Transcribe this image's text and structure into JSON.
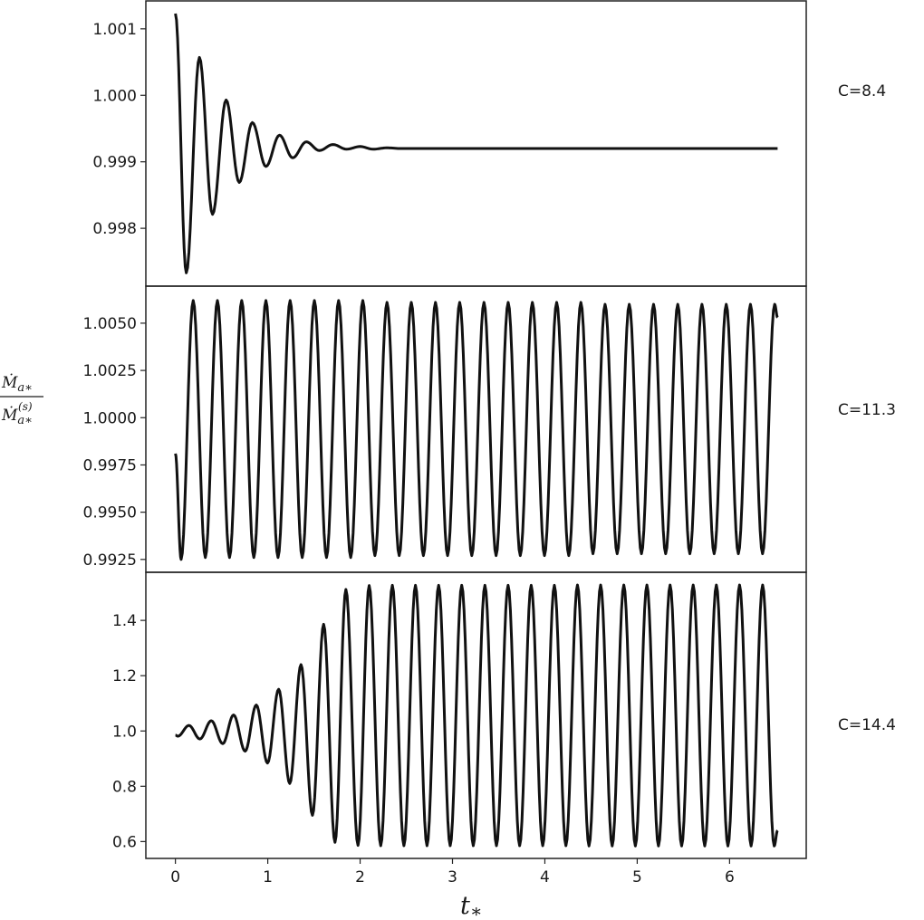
{
  "chart_data": {
    "type": "line",
    "xlabel": "t*",
    "ylabel": {
      "numerator": "Ṁa*",
      "denominator": "Ṁa*(s)"
    },
    "xlim": [
      -0.32,
      6.83
    ],
    "xticks": [
      0,
      1,
      2,
      3,
      4,
      5,
      6
    ],
    "grid": false,
    "line_color": "#111111",
    "panels": [
      {
        "label": "C=8.4",
        "ylim": [
          0.99713,
          1.00142
        ],
        "yticks": [
          "1.001",
          "1.000",
          "0.999",
          "0.998"
        ],
        "extrema": [
          [
            0,
            1.00123
          ],
          [
            0.118,
            0.99733
          ],
          [
            0.26,
            1.00057
          ],
          [
            0.402,
            0.99821
          ],
          [
            0.549,
            0.99993
          ],
          [
            0.691,
            0.99869
          ],
          [
            0.833,
            0.99959
          ],
          [
            0.98,
            0.99893
          ],
          [
            1.127,
            0.9994
          ],
          [
            1.27,
            0.99906
          ],
          [
            1.417,
            0.9993
          ],
          [
            1.559,
            0.99917
          ],
          [
            1.706,
            0.99926
          ],
          [
            1.853,
            0.99919
          ],
          [
            2.0,
            0.99923
          ],
          [
            2.14,
            0.99919
          ],
          [
            2.29,
            0.99921
          ],
          [
            2.44,
            0.9992
          ],
          [
            6.52,
            0.9992
          ]
        ]
      },
      {
        "label": "C=11.3",
        "ylim": [
          0.99182,
          1.00696
        ],
        "yticks": [
          "1.0050",
          "1.0025",
          "1.0000",
          "0.9975",
          "0.9950",
          "0.9925"
        ],
        "extrema": [
          [
            0,
            0.9981
          ],
          [
            0.062,
            0.9925
          ],
          [
            0.193,
            1.0062
          ],
          [
            0.324,
            0.9926
          ],
          [
            0.455,
            1.0062
          ],
          [
            0.586,
            0.9926
          ],
          [
            0.718,
            1.0062
          ],
          [
            0.849,
            0.9926
          ],
          [
            0.98,
            1.0062
          ],
          [
            1.111,
            0.9926
          ],
          [
            1.242,
            1.0062
          ],
          [
            1.373,
            0.9926
          ],
          [
            1.505,
            1.0062
          ],
          [
            1.636,
            0.9926
          ],
          [
            1.767,
            1.0062
          ],
          [
            1.898,
            0.9926
          ],
          [
            2.029,
            1.0062
          ],
          [
            2.16,
            0.9927
          ],
          [
            2.291,
            1.0061
          ],
          [
            2.423,
            0.9927
          ],
          [
            2.554,
            1.0061
          ],
          [
            2.685,
            0.9927
          ],
          [
            2.816,
            1.0061
          ],
          [
            2.947,
            0.9927
          ],
          [
            3.078,
            1.0061
          ],
          [
            3.209,
            0.9927
          ],
          [
            3.341,
            1.0061
          ],
          [
            3.472,
            0.9927
          ],
          [
            3.603,
            1.0061
          ],
          [
            3.734,
            0.9927
          ],
          [
            3.865,
            1.0061
          ],
          [
            3.996,
            0.9927
          ],
          [
            4.128,
            1.0061
          ],
          [
            4.259,
            0.9927
          ],
          [
            4.39,
            1.0061
          ],
          [
            4.521,
            0.9928
          ],
          [
            4.652,
            1.006
          ],
          [
            4.783,
            0.9928
          ],
          [
            4.914,
            1.006
          ],
          [
            5.046,
            0.9928
          ],
          [
            5.177,
            1.006
          ],
          [
            5.308,
            0.9928
          ],
          [
            5.439,
            1.006
          ],
          [
            5.57,
            0.9928
          ],
          [
            5.701,
            1.006
          ],
          [
            5.833,
            0.9928
          ],
          [
            5.964,
            1.006
          ],
          [
            6.095,
            0.9928
          ],
          [
            6.226,
            1.006
          ],
          [
            6.357,
            0.9928
          ],
          [
            6.488,
            1.006
          ],
          [
            6.52,
            1.0053
          ]
        ]
      },
      {
        "label": "C=14.4",
        "ylim": [
          0.539,
          1.574
        ],
        "yticks": [
          "1.4",
          "1.2",
          "1.0",
          "0.8",
          "0.6"
        ],
        "extrema": [
          [
            0,
            0.985
          ],
          [
            0.026,
            0.981
          ],
          [
            0.147,
            1.02
          ],
          [
            0.265,
            0.971
          ],
          [
            0.389,
            1.037
          ],
          [
            0.513,
            0.954
          ],
          [
            0.63,
            1.058
          ],
          [
            0.755,
            0.927
          ],
          [
            0.876,
            1.094
          ],
          [
            0.997,
            0.884
          ],
          [
            1.118,
            1.151
          ],
          [
            1.238,
            0.81
          ],
          [
            1.36,
            1.24
          ],
          [
            1.484,
            0.695
          ],
          [
            1.605,
            1.386
          ],
          [
            1.728,
            0.597
          ],
          [
            1.846,
            1.512
          ],
          [
            1.977,
            0.586
          ],
          [
            2.098,
            1.526
          ],
          [
            2.223,
            0.585
          ],
          [
            2.349,
            1.527
          ],
          [
            2.474,
            0.585
          ],
          [
            2.599,
            1.527
          ],
          [
            2.724,
            0.585
          ],
          [
            2.85,
            1.527
          ],
          [
            2.975,
            0.585
          ],
          [
            3.1,
            1.527
          ],
          [
            3.225,
            0.585
          ],
          [
            3.351,
            1.527
          ],
          [
            3.476,
            0.585
          ],
          [
            3.602,
            1.527
          ],
          [
            3.727,
            0.585
          ],
          [
            3.852,
            1.527
          ],
          [
            3.977,
            0.585
          ],
          [
            4.103,
            1.527
          ],
          [
            4.228,
            0.585
          ],
          [
            4.353,
            1.528
          ],
          [
            4.478,
            0.584
          ],
          [
            4.604,
            1.528
          ],
          [
            4.729,
            0.584
          ],
          [
            4.855,
            1.528
          ],
          [
            4.98,
            0.584
          ],
          [
            5.105,
            1.528
          ],
          [
            5.23,
            0.584
          ],
          [
            5.356,
            1.528
          ],
          [
            5.481,
            0.584
          ],
          [
            5.606,
            1.528
          ],
          [
            5.731,
            0.584
          ],
          [
            5.857,
            1.528
          ],
          [
            5.982,
            0.584
          ],
          [
            6.108,
            1.528
          ],
          [
            6.233,
            0.584
          ],
          [
            6.358,
            1.528
          ],
          [
            6.483,
            0.584
          ],
          [
            6.52,
            0.64
          ]
        ]
      }
    ]
  }
}
